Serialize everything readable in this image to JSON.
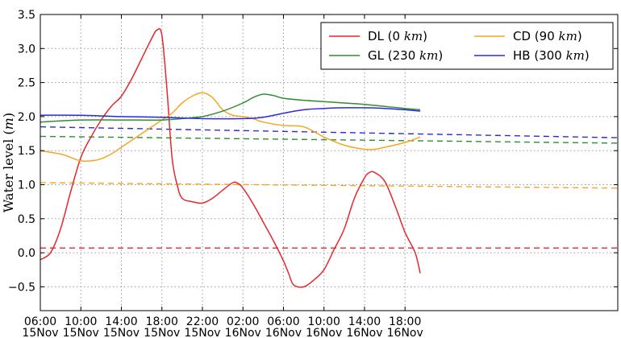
{
  "chart_data": {
    "type": "line",
    "title": "",
    "xlabel": "",
    "ylabel": "Water level (m)",
    "ylabel_parts": {
      "text": "Water level (",
      "unit": "m",
      "close": ")"
    },
    "x_unit": "hours",
    "xlim": [
      6,
      63
    ],
    "ylim": [
      -0.85,
      3.5
    ],
    "y_ticks": [
      -0.5,
      0.0,
      0.5,
      1.0,
      1.5,
      2.0,
      2.5,
      3.0,
      3.5
    ],
    "y_tick_labels": [
      "−0.5",
      "0.0",
      "0.5",
      "1.0",
      "1.5",
      "2.0",
      "2.5",
      "3.0",
      "3.5"
    ],
    "x_ticks": [
      {
        "x": 6,
        "time": "06:00",
        "date": "15Nov"
      },
      {
        "x": 10,
        "time": "10:00",
        "date": "15Nov"
      },
      {
        "x": 14,
        "time": "14:00",
        "date": "15Nov"
      },
      {
        "x": 18,
        "time": "18:00",
        "date": "15Nov"
      },
      {
        "x": 22,
        "time": "22:00",
        "date": "15Nov"
      },
      {
        "x": 26,
        "time": "02:00",
        "date": "16Nov"
      },
      {
        "x": 30,
        "time": "06:00",
        "date": "16Nov"
      },
      {
        "x": 34,
        "time": "10:00",
        "date": "16Nov"
      },
      {
        "x": 38,
        "time": "14:00",
        "date": "16Nov"
      },
      {
        "x": 42,
        "time": "18:00",
        "date": "16Nov"
      }
    ],
    "grid": true,
    "legend_position": "top-right",
    "series": [
      {
        "name": "DL",
        "distance": "0",
        "unit": "km",
        "color": "#e8272b",
        "x": [
          6,
          7,
          8,
          9,
          10,
          11,
          12,
          13,
          14,
          15,
          16,
          17,
          17.5,
          18,
          18.5,
          19,
          19.5,
          20,
          21,
          22,
          23,
          24,
          25,
          25.5,
          26,
          27,
          28,
          29,
          30,
          30.5,
          31,
          32,
          33,
          34,
          35,
          36,
          37,
          38,
          38.5,
          39,
          40,
          41,
          42,
          43,
          43.5
        ],
        "values": [
          -0.1,
          0.0,
          0.35,
          0.9,
          1.4,
          1.7,
          1.95,
          2.15,
          2.3,
          2.55,
          2.85,
          3.15,
          3.27,
          3.2,
          2.4,
          1.4,
          1.0,
          0.8,
          0.75,
          0.73,
          0.8,
          0.92,
          1.03,
          1.02,
          0.95,
          0.72,
          0.45,
          0.18,
          -0.12,
          -0.3,
          -0.47,
          -0.5,
          -0.4,
          -0.25,
          0.05,
          0.35,
          0.8,
          1.1,
          1.18,
          1.18,
          1.05,
          0.7,
          0.3,
          0.0,
          -0.3
        ]
      },
      {
        "name": "CD",
        "distance": "90",
        "unit": "km",
        "color": "#f5a623",
        "x": [
          6,
          8,
          9,
          10,
          11,
          12,
          13,
          14,
          16,
          18,
          19,
          20,
          21,
          22,
          23,
          24,
          25,
          26,
          27,
          28,
          30,
          32,
          34,
          36,
          38,
          39,
          40,
          42,
          43.5
        ],
        "values": [
          1.5,
          1.45,
          1.4,
          1.35,
          1.35,
          1.38,
          1.45,
          1.55,
          1.75,
          1.95,
          2.05,
          2.2,
          2.3,
          2.35,
          2.28,
          2.1,
          2.02,
          2.0,
          1.97,
          1.92,
          1.87,
          1.85,
          1.7,
          1.58,
          1.52,
          1.52,
          1.55,
          1.62,
          1.7
        ]
      },
      {
        "name": "GL",
        "distance": "230",
        "unit": "km",
        "color": "#2f8e2f",
        "x": [
          6,
          10,
          14,
          18,
          20,
          22,
          24,
          26,
          27,
          28,
          29,
          30,
          32,
          34,
          36,
          38,
          40,
          42,
          43.5
        ],
        "values": [
          1.92,
          1.95,
          1.95,
          1.95,
          1.97,
          2.0,
          2.08,
          2.2,
          2.28,
          2.33,
          2.31,
          2.27,
          2.24,
          2.22,
          2.2,
          2.18,
          2.15,
          2.12,
          2.1
        ]
      },
      {
        "name": "HB",
        "distance": "300",
        "unit": "km",
        "color": "#2b2bd6",
        "x": [
          6,
          10,
          14,
          18,
          22,
          26,
          28,
          30,
          32,
          34,
          36,
          38,
          40,
          42,
          43.5
        ],
        "values": [
          2.02,
          2.02,
          2.0,
          1.99,
          1.97,
          1.97,
          1.99,
          2.05,
          2.1,
          2.12,
          2.13,
          2.13,
          2.12,
          2.1,
          2.08
        ]
      }
    ],
    "reference_lines": [
      {
        "color": "#e8272b",
        "y_start": 0.07,
        "y_end": 0.07
      },
      {
        "color": "#f5a623",
        "y_start": 1.03,
        "y_end": 0.95
      },
      {
        "color": "#2f8e2f",
        "y_start": 1.71,
        "y_end": 1.61
      },
      {
        "color": "#2b2bd6",
        "y_start": 1.85,
        "y_end": 1.69
      }
    ]
  }
}
